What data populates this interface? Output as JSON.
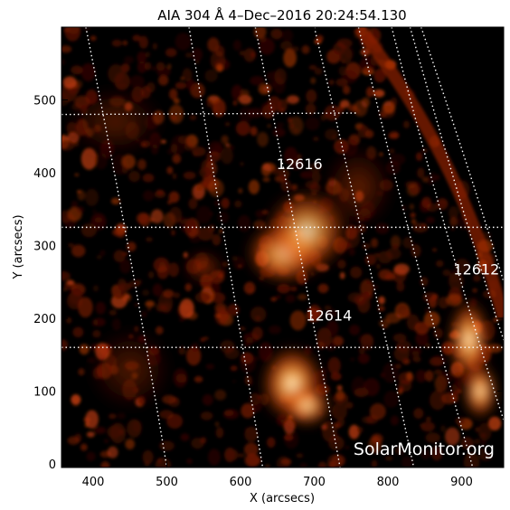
{
  "chart_data": {
    "type": "heatmap",
    "title": "AIA 304 Å   4–Dec–2016 20:24:54.130",
    "xlabel": "X (arcsecs)",
    "ylabel": "Y (arcsecs)",
    "xlim": [
      357,
      957
    ],
    "ylim": [
      -5,
      600
    ],
    "x_ticks": [
      400,
      500,
      600,
      700,
      800,
      900
    ],
    "y_ticks": [
      0,
      100,
      200,
      300,
      400,
      500
    ],
    "grid": true,
    "regions": [
      {
        "label": "12616",
        "x": 680,
        "y": 405
      },
      {
        "label": "12614",
        "x": 720,
        "y": 197
      },
      {
        "label": "12612",
        "x": 920,
        "y": 260
      }
    ],
    "bright_regions": [
      {
        "x": 660,
        "y": 290,
        "sx": 55,
        "sy": 45,
        "value": 1.0
      },
      {
        "x": 690,
        "y": 320,
        "sx": 60,
        "sy": 60,
        "value": 0.75
      },
      {
        "x": 670,
        "y": 110,
        "sx": 45,
        "sy": 55,
        "value": 1.0
      },
      {
        "x": 690,
        "y": 80,
        "sx": 35,
        "sy": 30,
        "value": 0.85
      },
      {
        "x": 910,
        "y": 170,
        "sx": 30,
        "sy": 60,
        "value": 1.0
      },
      {
        "x": 925,
        "y": 100,
        "sx": 25,
        "sy": 40,
        "value": 0.9
      },
      {
        "x": 550,
        "y": 270,
        "sx": 30,
        "sy": 25,
        "value": 0.6
      },
      {
        "x": 760,
        "y": 380,
        "sx": 50,
        "sy": 60,
        "value": 0.45
      },
      {
        "x": 430,
        "y": 470,
        "sx": 70,
        "sy": 50,
        "value": 0.35
      },
      {
        "x": 450,
        "y": 130,
        "sx": 60,
        "sy": 60,
        "value": 0.35
      }
    ],
    "watermark": "SolarMonitor.org",
    "colors": {
      "dark": "#000000",
      "mid": "#8b1a00",
      "bright": "#ff7a1a",
      "peak": "#fffbe8",
      "grid": "#ffffff"
    }
  }
}
